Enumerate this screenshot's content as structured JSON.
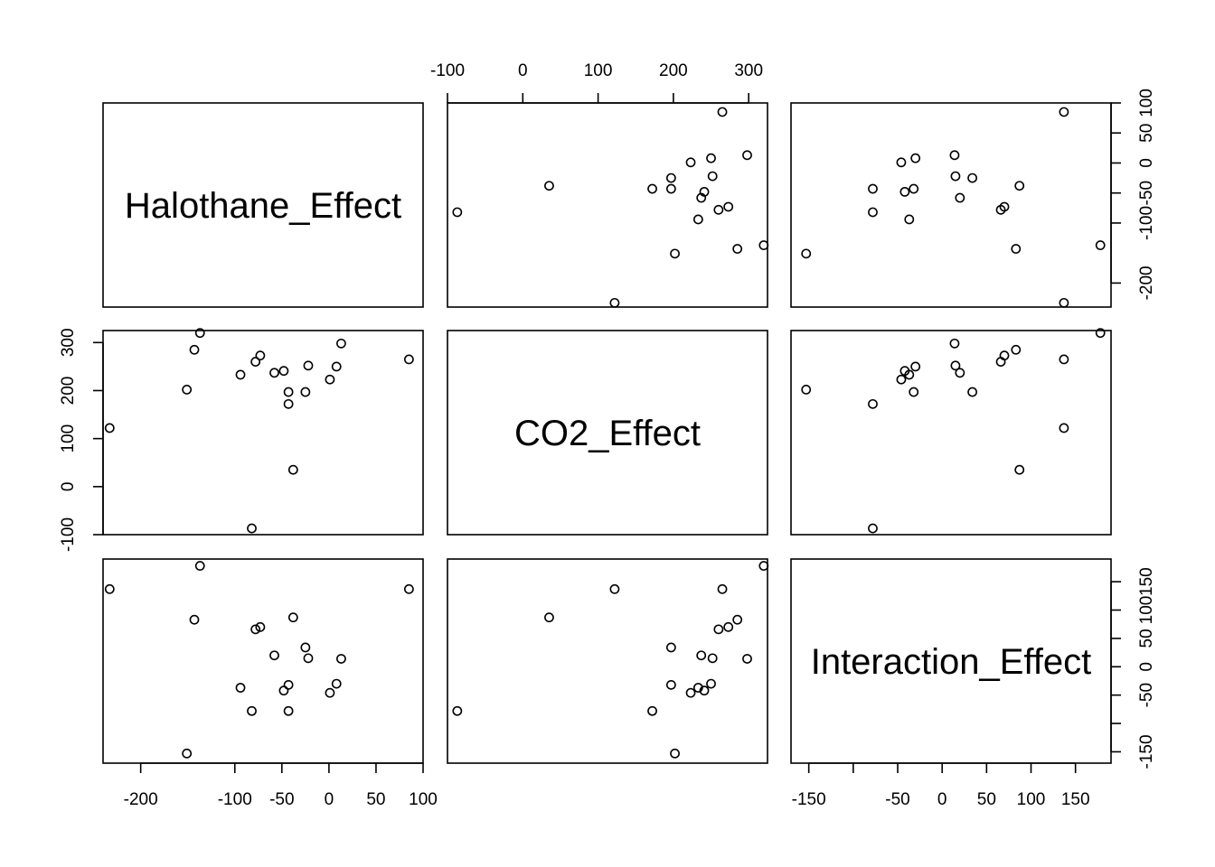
{
  "chart_data": {
    "type": "scatter",
    "title": "",
    "variables": [
      "Halothane_Effect",
      "CO2_Effect",
      "Interaction_Effect"
    ],
    "observations": [
      {
        "Halothane_Effect": 85,
        "CO2_Effect": 265,
        "Interaction_Effect": 137
      },
      {
        "Halothane_Effect": 13,
        "CO2_Effect": 298,
        "Interaction_Effect": 14
      },
      {
        "Halothane_Effect": -233,
        "CO2_Effect": 122,
        "Interaction_Effect": 137
      },
      {
        "Halothane_Effect": 8,
        "CO2_Effect": 250,
        "Interaction_Effect": -30
      },
      {
        "Halothane_Effect": -22,
        "CO2_Effect": 252,
        "Interaction_Effect": 15
      },
      {
        "Halothane_Effect": -25,
        "CO2_Effect": 197,
        "Interaction_Effect": 34
      },
      {
        "Halothane_Effect": 1,
        "CO2_Effect": 223,
        "Interaction_Effect": -46
      },
      {
        "Halothane_Effect": -38,
        "CO2_Effect": 35,
        "Interaction_Effect": 87
      },
      {
        "Halothane_Effect": -94,
        "CO2_Effect": 233,
        "Interaction_Effect": -37
      },
      {
        "Halothane_Effect": -43,
        "CO2_Effect": 197,
        "Interaction_Effect": -32
      },
      {
        "Halothane_Effect": -58,
        "CO2_Effect": 237,
        "Interaction_Effect": 20
      },
      {
        "Halothane_Effect": -73,
        "CO2_Effect": 273,
        "Interaction_Effect": 70
      },
      {
        "Halothane_Effect": -143,
        "CO2_Effect": 285,
        "Interaction_Effect": 83
      },
      {
        "Halothane_Effect": -48,
        "CO2_Effect": 241,
        "Interaction_Effect": -42
      },
      {
        "Halothane_Effect": -43,
        "CO2_Effect": 172,
        "Interaction_Effect": -78
      },
      {
        "Halothane_Effect": -78,
        "CO2_Effect": 260,
        "Interaction_Effect": 66
      },
      {
        "Halothane_Effect": -151,
        "CO2_Effect": 202,
        "Interaction_Effect": -153
      },
      {
        "Halothane_Effect": -137,
        "CO2_Effect": 320,
        "Interaction_Effect": 178
      },
      {
        "Halothane_Effect": -82,
        "CO2_Effect": -87,
        "Interaction_Effect": -78
      }
    ],
    "axes": {
      "Halothane_Effect": {
        "range": [
          -240,
          100
        ],
        "ticks": [
          -200,
          -100,
          -50,
          0,
          50,
          100
        ],
        "tick_labels": [
          "-200",
          "-100",
          "-50",
          "0",
          "50",
          "100"
        ]
      },
      "CO2_Effect": {
        "range": [
          -100,
          325
        ],
        "ticks": [
          -100,
          0,
          100,
          200,
          300
        ],
        "tick_labels": [
          "-100",
          "0",
          "100",
          "200",
          "300"
        ]
      },
      "Interaction_Effect": {
        "range": [
          -170,
          190
        ],
        "ticks": [
          -150,
          -100,
          -50,
          0,
          50,
          100,
          150
        ],
        "tick_labels": [
          "-150",
          "",
          "-50",
          "0",
          "50",
          "100",
          "150"
        ]
      }
    },
    "grid": false,
    "legend": "none",
    "point_style": "open-circle",
    "colors": {
      "ink": "#000000",
      "background": "#ffffff"
    }
  }
}
